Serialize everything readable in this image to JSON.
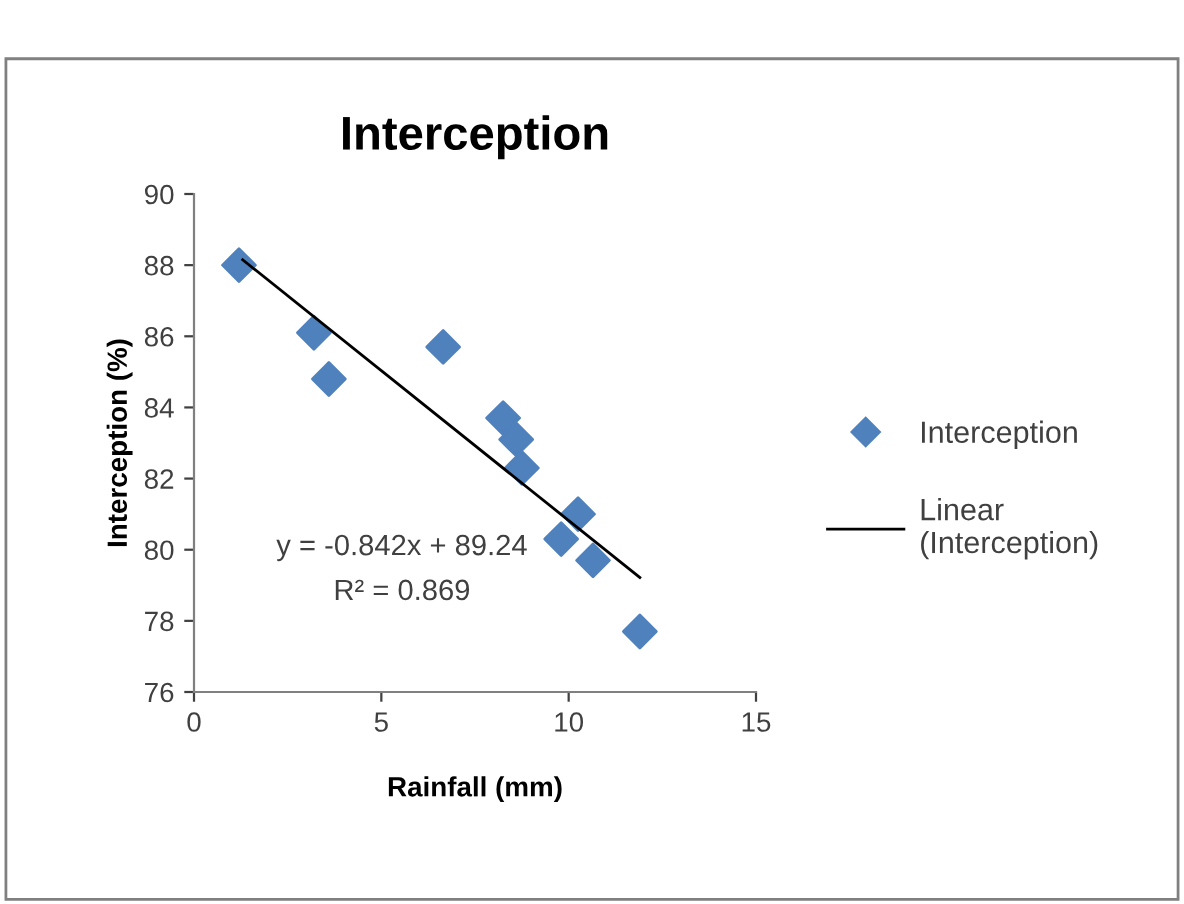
{
  "chart_data": {
    "type": "scatter",
    "title": "Interception",
    "xlabel": "Rainfall (mm)",
    "ylabel": "Interception (%)",
    "xlim": [
      0,
      15
    ],
    "xticks": [
      0,
      5,
      10,
      15
    ],
    "ylim": [
      76,
      90
    ],
    "yticks": [
      76,
      78,
      80,
      82,
      84,
      86,
      88,
      90
    ],
    "grid": false,
    "legend": "right",
    "marker": "diamond",
    "series": [
      {
        "name": "Interception",
        "color": "#4f81bd",
        "x": [
          1.2,
          3.2,
          3.6,
          6.65,
          8.25,
          8.6,
          8.75,
          10.25,
          9.8,
          10.65,
          11.9
        ],
        "values": [
          88.0,
          86.1,
          84.8,
          85.7,
          83.7,
          83.1,
          82.3,
          81.0,
          80.3,
          79.7,
          77.7
        ]
      },
      {
        "name": "Linear (Interception)",
        "type": "line",
        "color": "#000000",
        "line_style": "solid",
        "marker": "none",
        "x": [
          1.3,
          11.9
        ],
        "values": [
          88.15,
          79.22
        ]
      }
    ],
    "annotations": [
      "y = -0.842x + 89.24",
      "R² = 0.869"
    ]
  }
}
